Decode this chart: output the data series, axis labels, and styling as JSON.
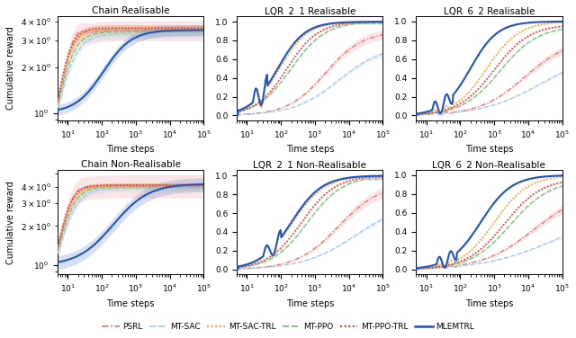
{
  "titles": [
    "Chain Realisable",
    "LQR_2_1 Realisable",
    "LQR_6_2 Realisable",
    "Chain Non-Realisable",
    "LQR_2_1 Non-Realisable",
    "LQR_6_2 Non-Realisable"
  ],
  "methods": [
    "PSRL",
    "MT-SAC",
    "MT-SAC-TRL",
    "MT-PPO",
    "MT-PPO-TRL",
    "MLEMTRL"
  ],
  "colors": {
    "PSRL": "#e87878",
    "MT-SAC": "#a8c8e8",
    "MT-SAC-TRL": "#f5a030",
    "MT-PPO": "#80c080",
    "MT-PPO-TRL": "#d84040",
    "MLEMTRL": "#2255bb"
  },
  "linestyles": {
    "PSRL": "dashdot",
    "MT-SAC": "dashed",
    "MT-SAC-TRL": "dotted",
    "MT-PPO": "dashed",
    "MT-PPO-TRL": "dotted",
    "MLEMTRL": "solid"
  },
  "linewidths": {
    "PSRL": 1.0,
    "MT-SAC": 1.0,
    "MT-SAC-TRL": 1.2,
    "MT-PPO": 1.0,
    "MT-PPO-TRL": 1.2,
    "MLEMTRL": 1.5
  },
  "xlabel": "Time steps",
  "ylabel": "Cumulative reward",
  "figsize": [
    6.4,
    3.76
  ],
  "dpi": 100
}
